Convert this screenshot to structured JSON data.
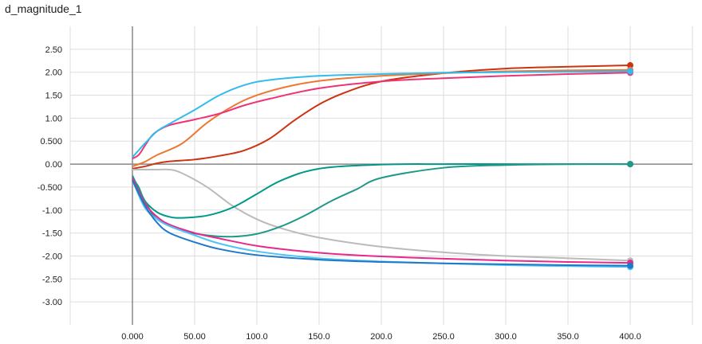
{
  "chart_data": {
    "type": "line",
    "title": "d_magnitude_1",
    "xlabel": "",
    "ylabel": "",
    "xlim": [
      -50,
      450
    ],
    "ylim": [
      -3.5,
      3.0
    ],
    "x_ticks": [
      0,
      50,
      100,
      150,
      200,
      250,
      300,
      350,
      400
    ],
    "x_tick_labels": [
      "0.000",
      "50.00",
      "100.0",
      "150.0",
      "200.0",
      "250.0",
      "300.0",
      "350.0",
      "400.0"
    ],
    "y_ticks": [
      2.5,
      2.0,
      1.5,
      1.0,
      0.5,
      0.0,
      -0.5,
      -1.0,
      -1.5,
      -2.0,
      -2.5,
      -3.0
    ],
    "y_tick_labels": [
      "2.50",
      "2.00",
      "1.50",
      "1.00",
      "0.500",
      "0.00",
      "-0.500",
      "-1.00",
      "-1.50",
      "-2.00",
      "-2.50",
      "-3.00"
    ],
    "grid": true,
    "series": [
      {
        "color": "#cc3311",
        "x": [
          0,
          10,
          20,
          30,
          50,
          70,
          90,
          110,
          130,
          150,
          170,
          200,
          250,
          300,
          350,
          400
        ],
        "values": [
          -0.1,
          -0.05,
          0.02,
          0.06,
          0.1,
          0.18,
          0.3,
          0.55,
          0.95,
          1.3,
          1.55,
          1.8,
          1.98,
          2.08,
          2.12,
          2.15
        ]
      },
      {
        "color": "#ee7733",
        "x": [
          0,
          10,
          20,
          40,
          60,
          80,
          100,
          130,
          160,
          200,
          250,
          300,
          350,
          400
        ],
        "values": [
          -0.05,
          0.05,
          0.2,
          0.45,
          0.9,
          1.25,
          1.5,
          1.72,
          1.84,
          1.92,
          1.98,
          2.02,
          2.04,
          2.05
        ]
      },
      {
        "color": "#ee3377",
        "x": [
          0,
          5,
          10,
          15,
          20,
          30,
          50,
          70,
          90,
          110,
          150,
          200,
          250,
          300,
          350,
          400
        ],
        "values": [
          0.12,
          0.2,
          0.4,
          0.6,
          0.72,
          0.85,
          0.97,
          1.1,
          1.28,
          1.42,
          1.65,
          1.8,
          1.87,
          1.92,
          1.96,
          1.99
        ]
      },
      {
        "color": "#33bbee",
        "x": [
          0,
          5,
          10,
          20,
          30,
          50,
          70,
          90,
          110,
          150,
          200,
          250,
          300,
          350,
          400
        ],
        "values": [
          0.15,
          0.3,
          0.45,
          0.72,
          0.88,
          1.18,
          1.5,
          1.72,
          1.83,
          1.92,
          1.96,
          1.99,
          2.0,
          2.01,
          2.02
        ]
      },
      {
        "color": "#bbbbbb",
        "x": [
          0,
          10,
          20,
          30,
          40,
          60,
          80,
          100,
          120,
          150,
          200,
          250,
          300,
          350,
          400
        ],
        "values": [
          -0.12,
          -0.12,
          -0.12,
          -0.12,
          -0.2,
          -0.5,
          -0.9,
          -1.2,
          -1.4,
          -1.6,
          -1.8,
          -1.92,
          -2.0,
          -2.05,
          -2.1
        ]
      },
      {
        "color": "#009988",
        "x": [
          0,
          5,
          10,
          20,
          30,
          40,
          60,
          80,
          100,
          120,
          150,
          200,
          250,
          300,
          350,
          400
        ],
        "values": [
          -0.3,
          -0.5,
          -0.8,
          -1.05,
          -1.15,
          -1.17,
          -1.12,
          -0.95,
          -0.65,
          -0.35,
          -0.1,
          -0.01,
          0.0,
          0.0,
          0.0,
          0.0
        ]
      },
      {
        "color": "#229988",
        "x": [
          0,
          10,
          20,
          40,
          60,
          80,
          100,
          120,
          140,
          160,
          180,
          200,
          250,
          300,
          350,
          400
        ],
        "values": [
          -0.25,
          -0.8,
          -1.2,
          -1.45,
          -1.55,
          -1.58,
          -1.52,
          -1.35,
          -1.1,
          -0.8,
          -0.55,
          -0.3,
          -0.08,
          -0.02,
          0.0,
          0.0
        ]
      },
      {
        "color": "#e7298a",
        "x": [
          0,
          10,
          20,
          30,
          50,
          70,
          100,
          130,
          160,
          200,
          250,
          300,
          350,
          400
        ],
        "values": [
          -0.3,
          -0.85,
          -1.15,
          -1.32,
          -1.5,
          -1.62,
          -1.78,
          -1.88,
          -1.95,
          -2.01,
          -2.06,
          -2.1,
          -2.13,
          -2.15
        ]
      },
      {
        "color": "#4fc3f7",
        "x": [
          0,
          10,
          20,
          30,
          50,
          70,
          100,
          150,
          200,
          250,
          300,
          350,
          400
        ],
        "values": [
          -0.35,
          -0.95,
          -1.2,
          -1.35,
          -1.55,
          -1.73,
          -1.9,
          -2.05,
          -2.12,
          -2.16,
          -2.2,
          -2.22,
          -2.24
        ]
      },
      {
        "color": "#1f78c8",
        "x": [
          0,
          10,
          20,
          30,
          50,
          70,
          100,
          150,
          200,
          250,
          300,
          350,
          400
        ],
        "values": [
          -0.35,
          -0.9,
          -1.28,
          -1.5,
          -1.7,
          -1.85,
          -1.98,
          -2.08,
          -2.13,
          -2.16,
          -2.18,
          -2.2,
          -2.21
        ]
      }
    ]
  }
}
